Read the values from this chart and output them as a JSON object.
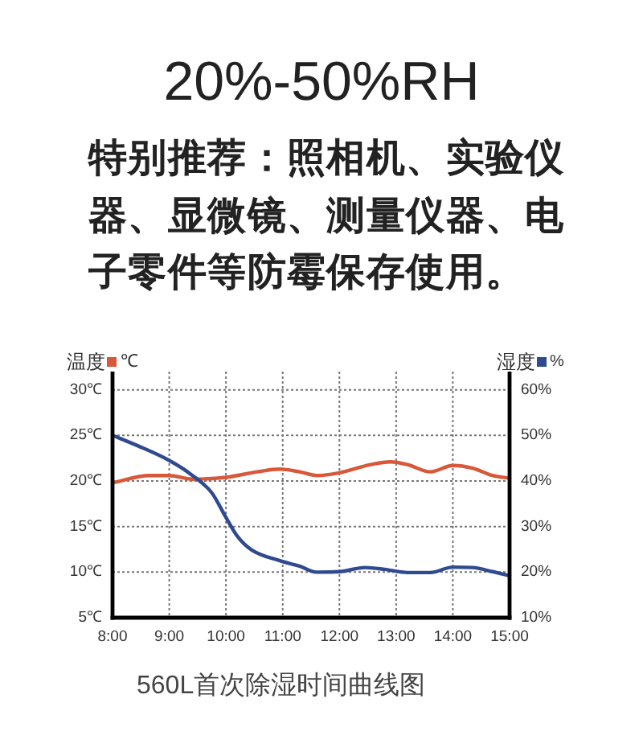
{
  "chart_data": {
    "type": "line",
    "title": "20%-50%RH",
    "subtitle": "特别推荐：照相机、实验仪器、显微镜、测量仪器、电子零件等防霉保存使用。",
    "annotations": [
      "560L首次除湿时间曲线图"
    ],
    "ylabel": "℃",
    "y2label": "%",
    "series": [
      {
        "name": "温度",
        "color": "#d8583a",
        "x": [
          8,
          8.65,
          9,
          9.4,
          10,
          10.55,
          10.95,
          11.3,
          11.6,
          12,
          12.55,
          12.9,
          13.2,
          13.6,
          14,
          14.35,
          14.7,
          15
        ],
        "values": [
          19.8,
          20.6,
          20.6,
          20.2,
          20.4,
          21.0,
          21.3,
          21.0,
          20.6,
          20.9,
          21.8,
          22.1,
          21.8,
          21.0,
          21.7,
          21.4,
          20.6,
          20.3
        ]
      },
      {
        "name": "湿度",
        "color": "#2f4a8e",
        "axis": "y2",
        "x": [
          8,
          8.45,
          9,
          9.4,
          9.75,
          10,
          10.2,
          10.45,
          10.95,
          11.3,
          11.6,
          12,
          12.45,
          12.8,
          13.2,
          13.6,
          14,
          14.35,
          14.7,
          15
        ],
        "values": [
          50,
          47.7,
          44.5,
          41.3,
          37.4,
          32,
          27.9,
          24.9,
          22.5,
          21.3,
          20,
          20.1,
          21,
          20.6,
          19.9,
          19.9,
          21.1,
          21,
          20.1,
          19.2
        ]
      }
    ],
    "xlim": [
      8,
      15
    ],
    "xticks": [
      {
        "value": 8,
        "label": "8:00"
      },
      {
        "value": 9,
        "label": "9:00"
      },
      {
        "value": 10,
        "label": "10:00"
      },
      {
        "value": 11,
        "label": "11:00"
      },
      {
        "value": 12,
        "label": "12:00"
      },
      {
        "value": 13,
        "label": "13:00"
      },
      {
        "value": 14,
        "label": "14:00"
      },
      {
        "value": 15,
        "label": "15:00"
      }
    ],
    "ylim": [
      5,
      32
    ],
    "yticks": [
      {
        "value": 5,
        "label": "5℃"
      },
      {
        "value": 10,
        "label": "10℃"
      },
      {
        "value": 15,
        "label": "15℃"
      },
      {
        "value": 20,
        "label": "20℃"
      },
      {
        "value": 25,
        "label": "25℃"
      },
      {
        "value": 30,
        "label": "30℃"
      }
    ],
    "y2lim": [
      10,
      64
    ],
    "y2ticks": [
      {
        "value": 10,
        "label": "10%"
      },
      {
        "value": 20,
        "label": "20%"
      },
      {
        "value": 30,
        "label": "30%"
      },
      {
        "value": 40,
        "label": "40%"
      },
      {
        "value": 50,
        "label": "50%"
      },
      {
        "value": 60,
        "label": "60%"
      }
    ],
    "grid": true,
    "legend": "top"
  }
}
